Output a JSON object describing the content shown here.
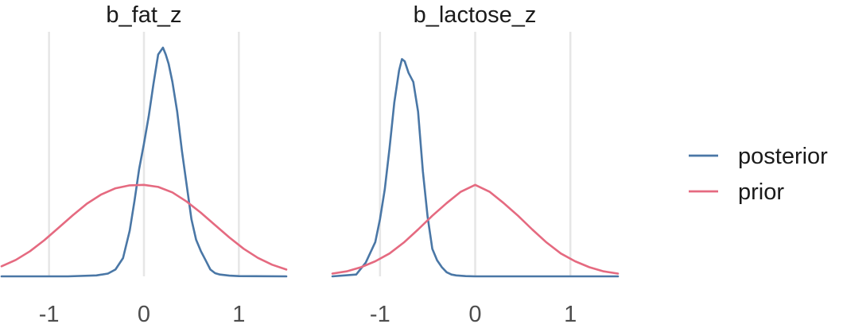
{
  "chart_data": {
    "type": "line",
    "grid": "vertical major gridlines only",
    "legend_position": "right",
    "colors": {
      "posterior": "#4A77A6",
      "prior": "#E56A80",
      "grid": "#E6E6E6"
    },
    "legend": [
      {
        "key": "posterior",
        "label": "posterior"
      },
      {
        "key": "prior",
        "label": "prior"
      }
    ],
    "panels": [
      {
        "title": "b_fat_z",
        "xlim": [
          -1.5,
          1.5
        ],
        "ylim": [
          0,
          1.0
        ],
        "x_ticks": [
          -1,
          0,
          1
        ],
        "x_tick_labels": [
          "-1",
          "0",
          "1"
        ],
        "series": [
          {
            "key": "posterior",
            "x": [
              -1.5,
              -0.8,
              -0.5,
              -0.38,
              -0.3,
              -0.22,
              -0.15,
              -0.1,
              -0.05,
              0.0,
              0.05,
              0.1,
              0.15,
              0.2,
              0.23,
              0.26,
              0.3,
              0.35,
              0.4,
              0.45,
              0.5,
              0.55,
              0.6,
              0.65,
              0.7,
              0.75,
              0.8,
              0.9,
              1.0,
              1.5
            ],
            "y": [
              0.0,
              0.0,
              0.004,
              0.012,
              0.03,
              0.08,
              0.2,
              0.33,
              0.47,
              0.58,
              0.7,
              0.84,
              0.97,
              1.0,
              0.97,
              0.93,
              0.85,
              0.72,
              0.55,
              0.4,
              0.25,
              0.16,
              0.11,
              0.07,
              0.03,
              0.014,
              0.008,
              0.003,
              0.001,
              0.0
            ]
          },
          {
            "key": "prior",
            "x": [
              -1.5,
              -1.35,
              -1.2,
              -1.05,
              -0.9,
              -0.75,
              -0.6,
              -0.45,
              -0.3,
              -0.15,
              0.0,
              0.15,
              0.3,
              0.45,
              0.6,
              0.75,
              0.9,
              1.05,
              1.2,
              1.35,
              1.5
            ],
            "y": [
              0.044,
              0.072,
              0.11,
              0.158,
              0.212,
              0.267,
              0.318,
              0.358,
              0.385,
              0.398,
              0.4,
              0.391,
              0.367,
              0.327,
              0.278,
              0.224,
              0.17,
              0.121,
              0.081,
              0.051,
              0.03
            ]
          }
        ]
      },
      {
        "title": "b_lactose_z",
        "xlim": [
          -1.5,
          1.5
        ],
        "ylim": [
          0,
          1.0
        ],
        "x_ticks": [
          -1,
          0,
          1
        ],
        "x_tick_labels": [
          "-1",
          "0",
          "1"
        ],
        "series": [
          {
            "key": "posterior",
            "x": [
              -1.5,
              -1.25,
              -1.15,
              -1.05,
              -1.0,
              -0.95,
              -0.9,
              -0.85,
              -0.8,
              -0.77,
              -0.74,
              -0.7,
              -0.65,
              -0.6,
              -0.55,
              -0.5,
              -0.45,
              -0.4,
              -0.35,
              -0.3,
              -0.25,
              -0.2,
              -0.1,
              0.0,
              1.5
            ],
            "y": [
              0.0,
              0.008,
              0.06,
              0.15,
              0.25,
              0.38,
              0.56,
              0.76,
              0.9,
              0.95,
              0.94,
              0.89,
              0.85,
              0.72,
              0.46,
              0.26,
              0.12,
              0.07,
              0.04,
              0.018,
              0.008,
              0.004,
              0.001,
              0.0,
              0.0
            ]
          },
          {
            "key": "prior",
            "x": [
              -1.5,
              -1.35,
              -1.2,
              -1.05,
              -0.9,
              -0.75,
              -0.6,
              -0.45,
              -0.3,
              -0.15,
              0.0,
              0.15,
              0.3,
              0.45,
              0.6,
              0.75,
              0.9,
              1.05,
              1.2,
              1.35,
              1.5
            ],
            "y": [
              0.012,
              0.022,
              0.04,
              0.066,
              0.1,
              0.148,
              0.205,
              0.265,
              0.32,
              0.37,
              0.4,
              0.37,
              0.32,
              0.265,
              0.205,
              0.148,
              0.1,
              0.066,
              0.04,
              0.022,
              0.012
            ]
          }
        ]
      }
    ]
  }
}
